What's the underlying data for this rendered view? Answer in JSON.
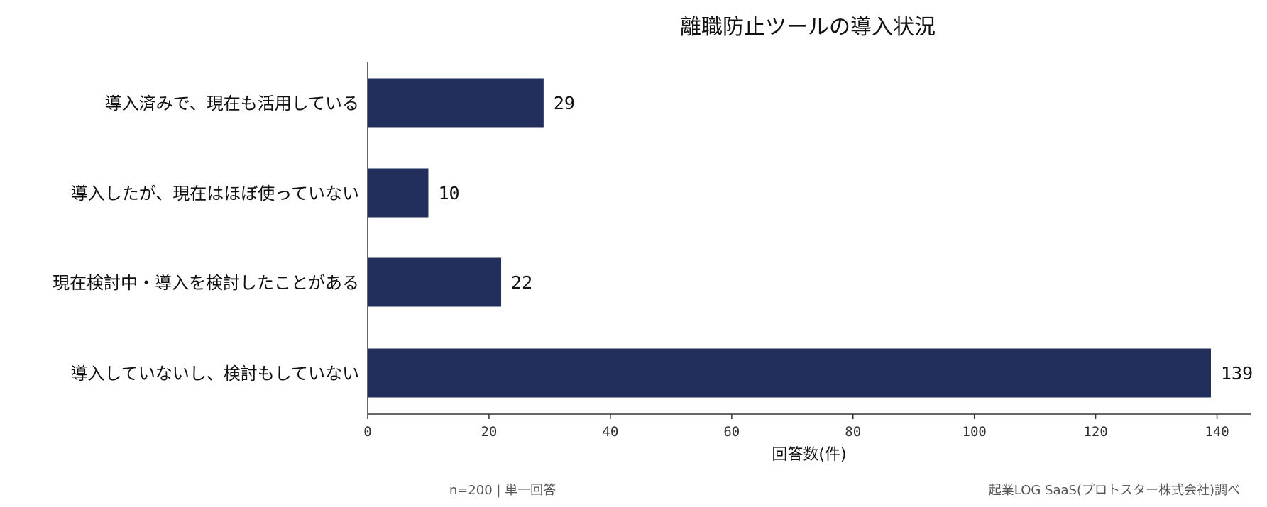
{
  "chart_data": {
    "type": "bar",
    "orientation": "horizontal",
    "title": "離職防止ツールの導入状況",
    "categories": [
      "導入済みで、現在も活用している",
      "導入したが、現在はほぼ使っていない",
      "現在検討中・導入を検討したことがある",
      "導入していないし、検討もしていない"
    ],
    "values": [
      29,
      10,
      22,
      139
    ],
    "xlabel": "回答数(件)",
    "ylabel": "",
    "xlim": [
      0,
      146
    ],
    "xticks": [
      0,
      20,
      40,
      60,
      80,
      100,
      120,
      140
    ],
    "grid": false,
    "bar_color": "#222f5c"
  },
  "footer": {
    "note": "n=200 | 単一回答",
    "source": "起業LOG SaaS(プロトスター株式会社)調べ"
  }
}
